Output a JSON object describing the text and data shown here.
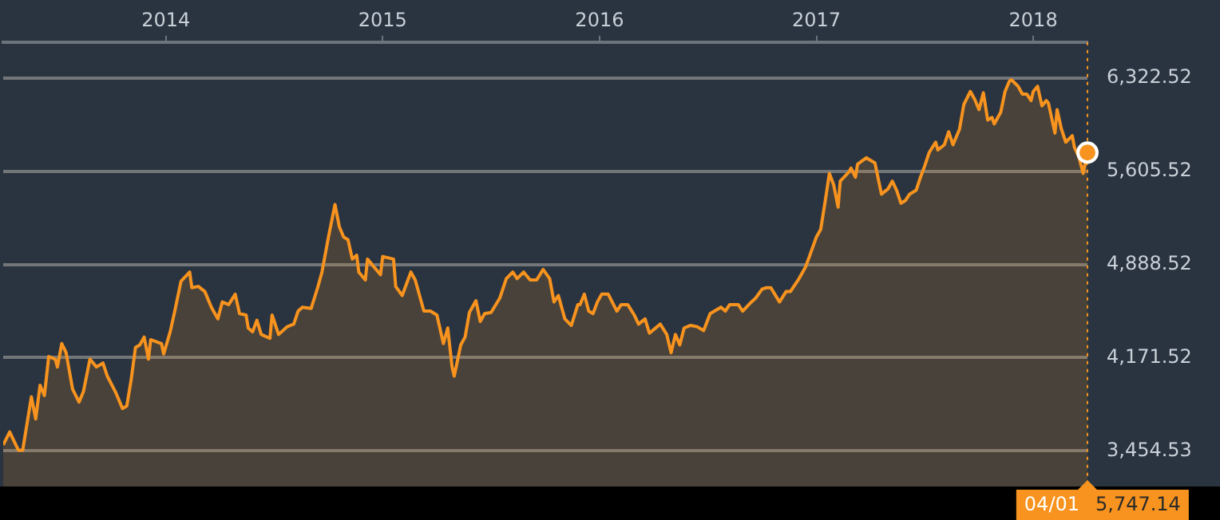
{
  "chart_data": {
    "type": "area",
    "x": [
      2013.25,
      2013.28,
      2013.32,
      2013.34,
      2013.38,
      2013.4,
      2013.42,
      2013.44,
      2013.46,
      2013.49,
      2013.5,
      2013.52,
      2013.54,
      2013.57,
      2013.6,
      2013.62,
      2013.65,
      2013.68,
      2013.71,
      2013.73,
      2013.77,
      2013.8,
      2013.82,
      2013.84,
      2013.86,
      2013.88,
      2013.9,
      2013.92,
      2013.93,
      2013.98,
      2013.99,
      2014.02,
      2014.04,
      2014.07,
      2014.11,
      2014.12,
      2014.15,
      2014.18,
      2014.21,
      2014.24,
      2014.26,
      2014.29,
      2014.32,
      2014.34,
      2014.37,
      2014.38,
      2014.4,
      2014.42,
      2014.44,
      2014.48,
      2014.49,
      2014.52,
      2014.56,
      2014.59,
      2014.61,
      2014.63,
      2014.67,
      2014.7,
      2014.72,
      2014.75,
      2014.78,
      2014.8,
      2014.82,
      2014.84,
      2014.86,
      2014.88,
      2014.89,
      2014.92,
      2014.93,
      2014.99,
      2015.0,
      2015.05,
      2015.06,
      2015.09,
      2015.13,
      2015.15,
      2015.19,
      2015.22,
      2015.25,
      2015.28,
      2015.3,
      2015.32,
      2015.33,
      2015.36,
      2015.38,
      2015.4,
      2015.43,
      2015.45,
      2015.47,
      2015.5,
      2015.54,
      2015.57,
      2015.6,
      2015.62,
      2015.65,
      2015.68,
      2015.71,
      2015.74,
      2015.77,
      2015.79,
      2015.81,
      2015.84,
      2015.87,
      2015.9,
      2015.91,
      2015.93,
      2015.95,
      2015.97,
      2015.99,
      2016.01,
      2016.04,
      2016.08,
      2016.1,
      2016.13,
      2016.16,
      2016.18,
      2016.21,
      2016.23,
      2016.28,
      2016.31,
      2016.33,
      2016.35,
      2016.37,
      2016.39,
      2016.42,
      2016.45,
      2016.48,
      2016.51,
      2016.53,
      2016.56,
      2016.58,
      2016.6,
      2016.64,
      2016.66,
      2016.7,
      2016.72,
      2016.75,
      2016.77,
      2016.79,
      2016.83,
      2016.86,
      2016.88,
      2016.92,
      2016.95,
      2016.97,
      2017.0,
      2017.02,
      2017.04,
      2017.06,
      2017.08,
      2017.1,
      2017.11,
      2017.15,
      2017.16,
      2017.18,
      2017.19,
      2017.23,
      2017.26,
      2017.27,
      2017.3,
      2017.33,
      2017.35,
      2017.37,
      2017.39,
      2017.41,
      2017.43,
      2017.46,
      2017.48,
      2017.5,
      2017.52,
      2017.55,
      2017.56,
      2017.59,
      2017.61,
      2017.63,
      2017.66,
      2017.68,
      2017.71,
      2017.73,
      2017.75,
      2017.77,
      2017.79,
      2017.81,
      2017.82,
      2017.85,
      2017.87,
      2017.89,
      2017.9,
      2017.93,
      2017.95,
      2017.97,
      2017.99,
      2018.0,
      2018.02,
      2018.04,
      2018.06,
      2018.07,
      2018.1,
      2018.11,
      2018.13,
      2018.15,
      2018.18,
      2018.19,
      2018.21,
      2018.23,
      2018.25
    ],
    "series": [
      {
        "color": "#f7931e",
        "values": [
          3500,
          3600,
          3460,
          3460,
          3870,
          3700,
          3960,
          3880,
          4180,
          4160,
          4100,
          4280,
          4210,
          3930,
          3830,
          3910,
          4160,
          4100,
          4130,
          4030,
          3900,
          3780,
          3800,
          4000,
          4250,
          4270,
          4330,
          4160,
          4310,
          4280,
          4200,
          4370,
          4520,
          4760,
          4830,
          4710,
          4720,
          4680,
          4560,
          4470,
          4600,
          4580,
          4660,
          4510,
          4500,
          4400,
          4370,
          4460,
          4350,
          4320,
          4500,
          4350,
          4410,
          4430,
          4530,
          4560,
          4550,
          4710,
          4830,
          5100,
          5350,
          5180,
          5100,
          5080,
          4930,
          4960,
          4830,
          4770,
          4930,
          4810,
          4950,
          4930,
          4720,
          4650,
          4830,
          4770,
          4530,
          4530,
          4500,
          4280,
          4400,
          4100,
          4030,
          4270,
          4330,
          4520,
          4610,
          4450,
          4510,
          4520,
          4630,
          4780,
          4830,
          4780,
          4830,
          4770,
          4770,
          4850,
          4780,
          4600,
          4650,
          4470,
          4420,
          4580,
          4580,
          4660,
          4530,
          4510,
          4600,
          4660,
          4660,
          4530,
          4580,
          4580,
          4500,
          4430,
          4470,
          4360,
          4430,
          4350,
          4210,
          4350,
          4270,
          4400,
          4420,
          4410,
          4380,
          4510,
          4530,
          4560,
          4530,
          4580,
          4580,
          4530,
          4600,
          4630,
          4700,
          4710,
          4710,
          4600,
          4680,
          4680,
          4780,
          4870,
          4960,
          5100,
          5160,
          5370,
          5590,
          5500,
          5330,
          5530,
          5600,
          5630,
          5560,
          5660,
          5710,
          5680,
          5670,
          5430,
          5470,
          5530,
          5460,
          5360,
          5380,
          5430,
          5460,
          5560,
          5650,
          5750,
          5830,
          5770,
          5810,
          5910,
          5810,
          5930,
          6120,
          6220,
          6160,
          6080,
          6210,
          6000,
          6020,
          5970,
          6060,
          6220,
          6300,
          6310,
          6260,
          6200,
          6200,
          6150,
          6220,
          6260,
          6110,
          6150,
          6130,
          5900,
          6080,
          5930,
          5830,
          5880,
          5790,
          5720,
          5590,
          5750
        ]
      }
    ],
    "xlim": [
      2013.25,
      2018.25
    ],
    "xticks": [
      2014,
      2015,
      2016,
      2017,
      2018
    ],
    "ylim": [
      3180,
      6600
    ],
    "yticks": [
      {
        "value": 3454.53,
        "label": "3,454.53"
      },
      {
        "value": 4171.52,
        "label": "4,171.52"
      },
      {
        "value": 4888.52,
        "label": "4,888.52"
      },
      {
        "value": 5605.52,
        "label": "5,605.52"
      },
      {
        "value": 6322.52,
        "label": "6,322.52"
      }
    ],
    "grid": "y",
    "ref_lines": [
      {
        "axis": "x",
        "value": 2018.25,
        "color": "#f7931e",
        "line_style": "dotted"
      }
    ],
    "annotations": [
      "04/01",
      "5,747.14"
    ]
  }
}
